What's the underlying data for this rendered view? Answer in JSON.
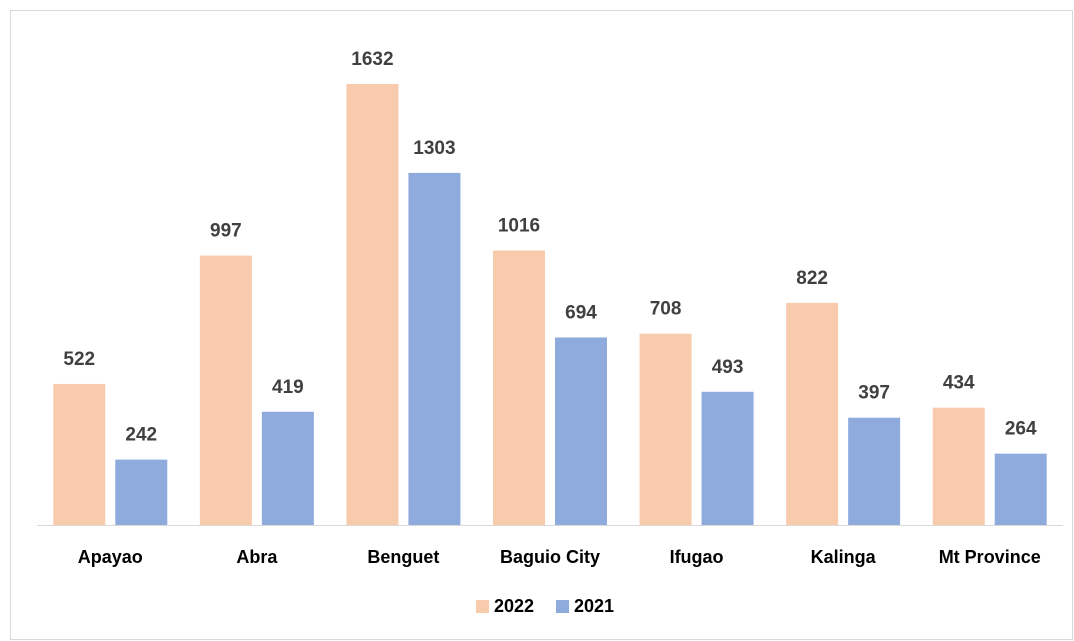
{
  "chart_data": {
    "type": "bar",
    "categories": [
      "Apayao",
      "Abra",
      "Benguet",
      "Baguio City",
      "Ifugao",
      "Kalinga",
      "Mt Province"
    ],
    "series": [
      {
        "name": "2022",
        "color": "#f8cbad",
        "values": [
          522,
          997,
          1632,
          1016,
          708,
          822,
          434
        ]
      },
      {
        "name": "2021",
        "color": "#8faadc",
        "values": [
          242,
          419,
          1303,
          694,
          493,
          397,
          264
        ]
      }
    ],
    "legend": "bottom"
  }
}
